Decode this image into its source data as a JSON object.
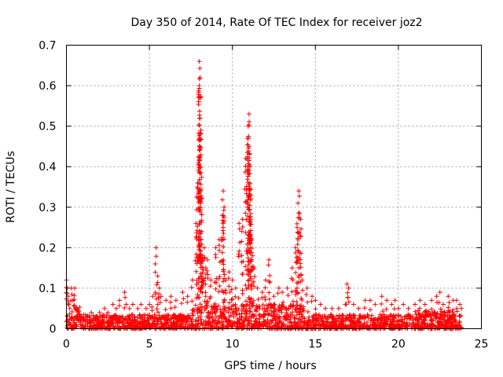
{
  "chart_data": {
    "type": "scatter",
    "title": "Day 350 of 2014, Rate Of TEC Index for receiver joz2",
    "xlabel": "GPS time / hours",
    "ylabel": "ROTI / TECUs",
    "xlim": [
      0,
      25
    ],
    "ylim": [
      0,
      0.7
    ],
    "xticks": [
      0,
      5,
      10,
      15,
      20,
      25
    ],
    "yticks": [
      0,
      0.1,
      0.2,
      0.3,
      0.4,
      0.5,
      0.6,
      0.7
    ],
    "xtick_labels": [
      "0",
      "5",
      "10",
      "15",
      "20",
      "25"
    ],
    "ytick_labels": [
      "0",
      "0.1",
      "0.2",
      "0.3",
      "0.4",
      "0.5",
      "0.6",
      "0.7"
    ],
    "grid": true,
    "marker": "+",
    "color": "#ff0000",
    "series": [
      {
        "name": "ROTI",
        "x": [
          0.0,
          0.05,
          0.1,
          0.15,
          0.2,
          0.3,
          0.4,
          0.5,
          0.6,
          0.7,
          0.8,
          0.9,
          1.0,
          1.2,
          1.5,
          1.8,
          2.0,
          2.3,
          2.5,
          2.8,
          3.0,
          3.2,
          3.5,
          3.6,
          3.8,
          4.0,
          4.3,
          4.5,
          4.8,
          5.0,
          5.2,
          5.4,
          5.5,
          5.6,
          5.7,
          6.0,
          6.3,
          6.6,
          7.0,
          7.3,
          7.6,
          7.8,
          7.9,
          7.95,
          8.0,
          8.0,
          8.05,
          8.05,
          8.1,
          8.1,
          8.15,
          8.2,
          8.3,
          8.4,
          8.5,
          8.7,
          9.0,
          9.2,
          9.4,
          9.45,
          9.5,
          9.6,
          9.8,
          10.0,
          10.2,
          10.4,
          10.6,
          10.8,
          10.9,
          10.95,
          11.0,
          11.0,
          11.05,
          11.05,
          11.1,
          11.1,
          11.15,
          11.2,
          11.3,
          11.5,
          11.8,
          12.0,
          12.2,
          12.5,
          12.8,
          13.0,
          13.3,
          13.6,
          13.8,
          13.9,
          13.95,
          14.0,
          14.1,
          14.2,
          14.5,
          14.8,
          15.0,
          15.3,
          15.6,
          16.0,
          16.4,
          16.8,
          16.9,
          17.0,
          17.3,
          17.6,
          18.0,
          18.3,
          18.6,
          19.0,
          19.3,
          19.6,
          19.8,
          20.0,
          20.3,
          20.6,
          21.0,
          21.3,
          21.6,
          22.0,
          22.3,
          22.5,
          22.7,
          23.0,
          23.3,
          23.5,
          23.7,
          23.8
        ],
        "values": [
          0.12,
          0.1,
          0.08,
          0.06,
          0.05,
          0.1,
          0.07,
          0.1,
          0.05,
          0.04,
          0.03,
          0.03,
          0.02,
          0.03,
          0.04,
          0.03,
          0.04,
          0.05,
          0.04,
          0.06,
          0.05,
          0.07,
          0.09,
          0.06,
          0.05,
          0.06,
          0.05,
          0.06,
          0.05,
          0.06,
          0.08,
          0.2,
          0.13,
          0.1,
          0.08,
          0.07,
          0.08,
          0.07,
          0.09,
          0.08,
          0.12,
          0.26,
          0.35,
          0.41,
          0.66,
          0.6,
          0.62,
          0.52,
          0.49,
          0.32,
          0.24,
          0.18,
          0.2,
          0.15,
          0.17,
          0.12,
          0.2,
          0.22,
          0.28,
          0.34,
          0.3,
          0.12,
          0.14,
          0.12,
          0.1,
          0.26,
          0.27,
          0.42,
          0.47,
          0.5,
          0.53,
          0.45,
          0.4,
          0.36,
          0.33,
          0.27,
          0.22,
          0.18,
          0.15,
          0.1,
          0.09,
          0.12,
          0.17,
          0.08,
          0.1,
          0.09,
          0.1,
          0.15,
          0.2,
          0.25,
          0.31,
          0.34,
          0.27,
          0.12,
          0.1,
          0.08,
          0.07,
          0.06,
          0.05,
          0.05,
          0.05,
          0.06,
          0.11,
          0.1,
          0.06,
          0.05,
          0.07,
          0.07,
          0.06,
          0.08,
          0.07,
          0.06,
          0.07,
          0.05,
          0.06,
          0.05,
          0.06,
          0.07,
          0.06,
          0.07,
          0.08,
          0.09,
          0.06,
          0.08,
          0.07,
          0.07,
          0.06,
          0.05
        ]
      }
    ]
  }
}
